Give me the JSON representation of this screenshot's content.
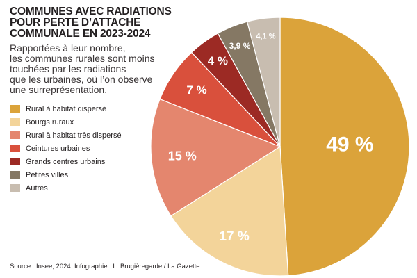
{
  "header": {
    "title_lines": [
      "COMMUNES AVEC RADIATIONS",
      "POUR PERTE D’ATTACHE",
      "COMMUNALE EN 2023-2024"
    ],
    "subtitle_lines": [
      "Rapportées à leur nombre,",
      "les communes rurales sont moins",
      "touchées par les radiations",
      "que les urbaines, où l’on observe",
      "une surreprésentation."
    ]
  },
  "footer": {
    "source": "Source : Insee, 2024. Infographie : L. Brugièregarde / La Gazette"
  },
  "chart_data": {
    "type": "pie",
    "title": "COMMUNES AVEC RADIATIONS POUR PERTE D’ATTACHE COMMUNALE EN 2023-2024",
    "legend_position": "left",
    "start_angle_deg": 0,
    "direction": "clockwise",
    "slices": [
      {
        "name": "Rural à habitat dispersé",
        "value": 49,
        "label": "49 %",
        "color": "#dba33a",
        "label_color": "#ffffff"
      },
      {
        "name": "Bourgs ruraux",
        "value": 17,
        "label": "17 %",
        "color": "#f3d49a",
        "label_color": "#ffffff"
      },
      {
        "name": "Rural à habitat très dispersé",
        "value": 15,
        "label": "15 %",
        "color": "#e4866e",
        "label_color": "#ffffff"
      },
      {
        "name": "Ceintures urbaines",
        "value": 7,
        "label": "7 %",
        "color": "#d9503c",
        "label_color": "#ffffff"
      },
      {
        "name": "Grands centres urbains",
        "value": 4,
        "label": "4 %",
        "color": "#9c2a24",
        "label_color": "#ffffff"
      },
      {
        "name": "Petites villes",
        "value": 3.9,
        "label": "3,9 %",
        "color": "#857864",
        "label_color": "#ffffff"
      },
      {
        "name": "Autres",
        "value": 4.1,
        "label": "4,1 %",
        "color": "#c8bdb0",
        "label_color": "#ffffff"
      }
    ]
  }
}
